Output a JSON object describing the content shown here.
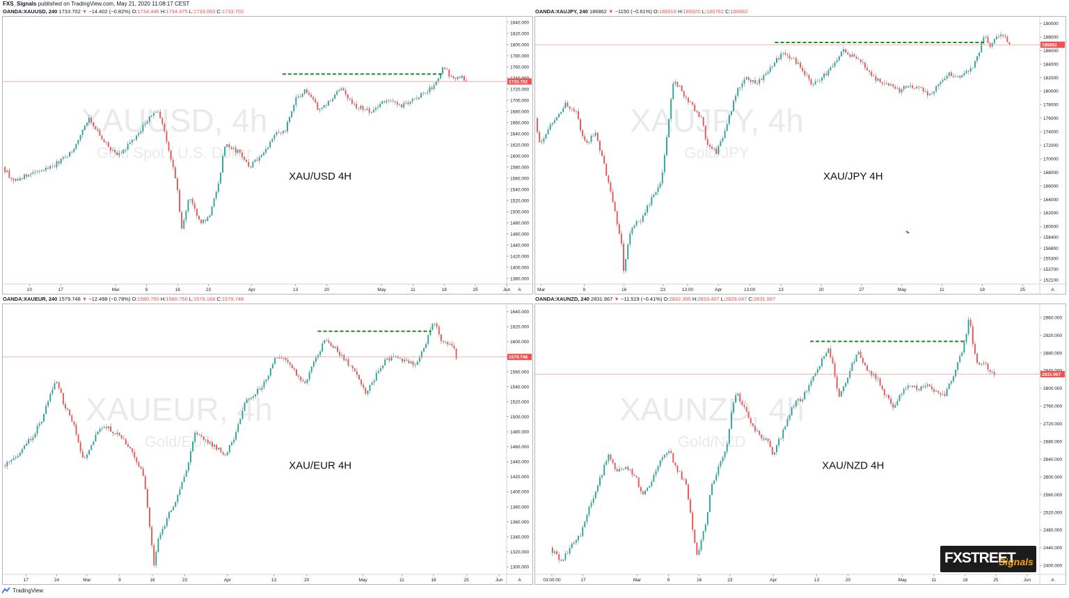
{
  "header": {
    "author": "FXS_Signals",
    "published": "published on TradingView.com, May 21, 2020 11:08:17 CEST"
  },
  "footer": {
    "brand": "TradingView"
  },
  "logo": {
    "main": "FXSTREET",
    "sub": "Signals"
  },
  "colors": {
    "up": "#26a69a",
    "down": "#ef5350",
    "wick": "#787b86",
    "resistance": "#1b8a1b",
    "price_line": "#ef9a9a",
    "tag": "#ef5350"
  },
  "chart_data": [
    {
      "type": "candlestick",
      "symbol": "OANDA:XAUUSD, 240",
      "last": "1733.702",
      "change": "−14.402 (−0.82%)",
      "ohlc": {
        "O": "1734.446",
        "H": "1734.475",
        "L": "1733.060",
        "C": "1733.702"
      },
      "label": "XAU/USD 4H",
      "watermark": "XAUUSD, 4h",
      "watermark_sub": "Gold Spot / U.S. Dollar",
      "price_tag": "1733.702",
      "ylim": [
        1370,
        1850
      ],
      "yticks": [
        1380,
        1400,
        1420,
        1440,
        1460,
        1480,
        1500,
        1520,
        1540,
        1560,
        1580,
        1600,
        1620,
        1640,
        1660,
        1680,
        1700,
        1720,
        1740,
        1760,
        1780,
        1800,
        1820,
        1840
      ],
      "ytick_labels": [
        "1380.000",
        "1400.000",
        "1420.000",
        "1440.000",
        "1460.000",
        "1480.000",
        "1500.000",
        "1520.000",
        "1540.000",
        "1560.000",
        "1580.000",
        "1600.000",
        "1620.000",
        "1640.000",
        "1660.000",
        "1680.000",
        "1700.000",
        "1720.000",
        "1740.000",
        "1760.000",
        "1780.000",
        "1800.000",
        "1820.000",
        "1840.000"
      ],
      "xticks": [
        {
          "label": "10",
          "x": 0.053
        },
        {
          "label": "17",
          "x": 0.115
        },
        {
          "label": "Mar",
          "x": 0.224
        },
        {
          "label": "9",
          "x": 0.285
        },
        {
          "label": "16",
          "x": 0.347
        },
        {
          "label": "23",
          "x": 0.408
        },
        {
          "label": "Apr",
          "x": 0.494
        },
        {
          "label": "13",
          "x": 0.581
        },
        {
          "label": "20",
          "x": 0.643
        },
        {
          "label": "May",
          "x": 0.752
        },
        {
          "label": "11",
          "x": 0.814
        },
        {
          "label": "18",
          "x": 0.876
        },
        {
          "label": "25",
          "x": 0.938
        },
        {
          "label": "Jun",
          "x": 1.0
        }
      ],
      "path": [
        [
          0,
          1580
        ],
        [
          0.02,
          1556
        ],
        [
          0.06,
          1568
        ],
        [
          0.1,
          1582
        ],
        [
          0.14,
          1610
        ],
        [
          0.17,
          1670
        ],
        [
          0.2,
          1625
        ],
        [
          0.23,
          1600
        ],
        [
          0.27,
          1640
        ],
        [
          0.29,
          1670
        ],
        [
          0.31,
          1680
        ],
        [
          0.33,
          1610
        ],
        [
          0.345,
          1550
        ],
        [
          0.355,
          1465
        ],
        [
          0.37,
          1530
        ],
        [
          0.39,
          1480
        ],
        [
          0.41,
          1490
        ],
        [
          0.43,
          1560
        ],
        [
          0.44,
          1620
        ],
        [
          0.47,
          1605
        ],
        [
          0.49,
          1580
        ],
        [
          0.52,
          1610
        ],
        [
          0.54,
          1640
        ],
        [
          0.56,
          1645
        ],
        [
          0.58,
          1700
        ],
        [
          0.6,
          1718
        ],
        [
          0.63,
          1680
        ],
        [
          0.65,
          1700
        ],
        [
          0.67,
          1720
        ],
        [
          0.7,
          1690
        ],
        [
          0.73,
          1680
        ],
        [
          0.76,
          1700
        ],
        [
          0.79,
          1690
        ],
        [
          0.82,
          1702
        ],
        [
          0.84,
          1715
        ],
        [
          0.86,
          1730
        ],
        [
          0.875,
          1760
        ],
        [
          0.89,
          1740
        ],
        [
          0.91,
          1745
        ],
        [
          0.92,
          1734
        ]
      ],
      "resistance": {
        "x0": 0.555,
        "x1": 0.875,
        "value": 1747
      },
      "last_value": 1733.7
    },
    {
      "type": "candlestick",
      "symbol": "OANDA:XAUJPY, 240",
      "last": "186862",
      "change": "−1150 (−0.61%)",
      "ohlc": {
        "O": "186916",
        "H": "186920",
        "L": "186762",
        "C": "186862"
      },
      "label": "XAU/JPY 4H",
      "watermark": "XAUJPY, 4h",
      "watermark_sub": "Gold/JPY",
      "price_tag": "186862",
      "ylim": [
        151500,
        191000
      ],
      "yticks": [
        152100,
        153700,
        155300,
        156800,
        158400,
        160000,
        162000,
        164000,
        166000,
        168000,
        170000,
        172000,
        174000,
        176000,
        178000,
        180000,
        182000,
        184000,
        186000,
        188000,
        190000
      ],
      "ytick_labels": [
        "152100",
        "153700",
        "155300",
        "156800",
        "158400",
        "160000",
        "162000",
        "164000",
        "166000",
        "168000",
        "170000",
        "172000",
        "174000",
        "176000",
        "178000",
        "180000",
        "182000",
        "184000",
        "186000",
        "188000",
        "190000"
      ],
      "xticks": [
        {
          "label": "Mar",
          "x": 0.012
        },
        {
          "label": "9",
          "x": 0.097
        },
        {
          "label": "16",
          "x": 0.176
        },
        {
          "label": "23",
          "x": 0.253
        },
        {
          "label": "13:00",
          "x": 0.302
        },
        {
          "label": "Apr",
          "x": 0.363
        },
        {
          "label": "13:00",
          "x": 0.425
        },
        {
          "label": "13",
          "x": 0.487
        },
        {
          "label": "20",
          "x": 0.567
        },
        {
          "label": "27",
          "x": 0.647
        },
        {
          "label": "May",
          "x": 0.727
        },
        {
          "label": "11",
          "x": 0.806
        },
        {
          "label": "18",
          "x": 0.886
        },
        {
          "label": "25",
          "x": 0.966
        }
      ],
      "path": [
        [
          0,
          176000
        ],
        [
          0.01,
          172000
        ],
        [
          0.03,
          175000
        ],
        [
          0.06,
          178000
        ],
        [
          0.08,
          177000
        ],
        [
          0.1,
          172000
        ],
        [
          0.12,
          174000
        ],
        [
          0.14,
          168000
        ],
        [
          0.15,
          165000
        ],
        [
          0.17,
          158000
        ],
        [
          0.175,
          153500
        ],
        [
          0.19,
          160000
        ],
        [
          0.21,
          161000
        ],
        [
          0.23,
          164000
        ],
        [
          0.25,
          167000
        ],
        [
          0.265,
          176000
        ],
        [
          0.275,
          182000
        ],
        [
          0.29,
          180000
        ],
        [
          0.31,
          178000
        ],
        [
          0.33,
          176000
        ],
        [
          0.34,
          172000
        ],
        [
          0.36,
          171000
        ],
        [
          0.38,
          175000
        ],
        [
          0.4,
          180000
        ],
        [
          0.42,
          182000
        ],
        [
          0.44,
          181000
        ],
        [
          0.47,
          184000
        ],
        [
          0.49,
          185500
        ],
        [
          0.51,
          185000
        ],
        [
          0.53,
          183000
        ],
        [
          0.55,
          181000
        ],
        [
          0.57,
          182000
        ],
        [
          0.59,
          184000
        ],
        [
          0.61,
          186000
        ],
        [
          0.63,
          185000
        ],
        [
          0.65,
          184000
        ],
        [
          0.67,
          182000
        ],
        [
          0.7,
          181000
        ],
        [
          0.72,
          180000
        ],
        [
          0.74,
          181000
        ],
        [
          0.76,
          180500
        ],
        [
          0.78,
          179500
        ],
        [
          0.8,
          181000
        ],
        [
          0.82,
          182500
        ],
        [
          0.84,
          182000
        ],
        [
          0.86,
          183000
        ],
        [
          0.87,
          184000
        ],
        [
          0.88,
          186000
        ],
        [
          0.89,
          188500
        ],
        [
          0.9,
          186500
        ],
        [
          0.91,
          188000
        ],
        [
          0.93,
          188000
        ],
        [
          0.94,
          187000
        ]
      ],
      "resistance": {
        "x0": 0.475,
        "x1": 0.89,
        "value": 187200
      },
      "last_value": 186862
    },
    {
      "type": "candlestick",
      "symbol": "OANDA:XAUEUR, 240",
      "last": "1579.748",
      "change": "−12.498 (−0.78%)",
      "ohlc": {
        "O": "1580.750",
        "H": "1580.750",
        "L": "1579.168",
        "C": "1579.748"
      },
      "label": "XAU/EUR 4H",
      "watermark": "XAUEUR, 4h",
      "watermark_sub": "Gold/EUR",
      "price_tag": "1579.748",
      "ylim": [
        1290,
        1650
      ],
      "yticks": [
        1300,
        1320,
        1340,
        1360,
        1380,
        1400,
        1420,
        1440,
        1460,
        1480,
        1500,
        1520,
        1540,
        1560,
        1580,
        1600,
        1620,
        1640
      ],
      "ytick_labels": [
        "1300.000",
        "1320.000",
        "1340.000",
        "1360.000",
        "1380.000",
        "1400.000",
        "1420.000",
        "1440.000",
        "1460.000",
        "1480.000",
        "1500.000",
        "1520.000",
        "1540.000",
        "1560.000",
        "1580.000",
        "1600.000",
        "1620.000",
        "1640.000"
      ],
      "xticks": [
        {
          "label": "17",
          "x": 0.046
        },
        {
          "label": "24",
          "x": 0.107
        },
        {
          "label": "Mar",
          "x": 0.167
        },
        {
          "label": "9",
          "x": 0.232
        },
        {
          "label": "16",
          "x": 0.297
        },
        {
          "label": "23",
          "x": 0.361
        },
        {
          "label": "Apr",
          "x": 0.446
        },
        {
          "label": "13",
          "x": 0.538
        },
        {
          "label": "20",
          "x": 0.603
        },
        {
          "label": "May",
          "x": 0.715
        },
        {
          "label": "11",
          "x": 0.792
        },
        {
          "label": "18",
          "x": 0.855
        },
        {
          "label": "25",
          "x": 0.92
        },
        {
          "label": "Jun",
          "x": 0.985
        }
      ],
      "path": [
        [
          0,
          1435
        ],
        [
          0.03,
          1450
        ],
        [
          0.06,
          1475
        ],
        [
          0.08,
          1500
        ],
        [
          0.105,
          1550
        ],
        [
          0.12,
          1520
        ],
        [
          0.14,
          1490
        ],
        [
          0.16,
          1440
        ],
        [
          0.18,
          1470
        ],
        [
          0.2,
          1490
        ],
        [
          0.22,
          1480
        ],
        [
          0.24,
          1470
        ],
        [
          0.26,
          1450
        ],
        [
          0.28,
          1420
        ],
        [
          0.29,
          1360
        ],
        [
          0.3,
          1305
        ],
        [
          0.31,
          1340
        ],
        [
          0.33,
          1370
        ],
        [
          0.35,
          1400
        ],
        [
          0.37,
          1440
        ],
        [
          0.38,
          1480
        ],
        [
          0.4,
          1470
        ],
        [
          0.42,
          1460
        ],
        [
          0.44,
          1450
        ],
        [
          0.46,
          1470
        ],
        [
          0.48,
          1520
        ],
        [
          0.5,
          1530
        ],
        [
          0.52,
          1545
        ],
        [
          0.54,
          1580
        ],
        [
          0.56,
          1575
        ],
        [
          0.58,
          1560
        ],
        [
          0.6,
          1545
        ],
        [
          0.62,
          1575
        ],
        [
          0.64,
          1605
        ],
        [
          0.66,
          1590
        ],
        [
          0.68,
          1575
        ],
        [
          0.7,
          1560
        ],
        [
          0.72,
          1530
        ],
        [
          0.74,
          1555
        ],
        [
          0.76,
          1575
        ],
        [
          0.78,
          1580
        ],
        [
          0.8,
          1575
        ],
        [
          0.82,
          1570
        ],
        [
          0.84,
          1600
        ],
        [
          0.855,
          1630
        ],
        [
          0.87,
          1600
        ],
        [
          0.89,
          1598
        ],
        [
          0.9,
          1580
        ]
      ],
      "resistance": {
        "x0": 0.625,
        "x1": 0.85,
        "value": 1614
      },
      "last_value": 1579.748
    },
    {
      "type": "candlestick",
      "symbol": "OANDA:XAUNZD, 240",
      "last": "2831.967",
      "change": "−11.519 (−0.41%)",
      "ohlc": {
        "O": "2832.395",
        "H": "2833.407",
        "L": "2829.047",
        "C": "2831.967"
      },
      "label": "XAU/NZD 4H",
      "watermark": "XAUNZD, 4h",
      "watermark_sub": "Gold/NZD",
      "price_tag": "2831.967",
      "ylim": [
        2380,
        2990
      ],
      "yticks": [
        2400,
        2440,
        2480,
        2520,
        2560,
        2600,
        2640,
        2680,
        2720,
        2760,
        2800,
        2840,
        2880,
        2920,
        2960
      ],
      "ytick_labels": [
        "2400.000",
        "2440.000",
        "2480.000",
        "2520.000",
        "2560.000",
        "2600.000",
        "2640.000",
        "2680.000",
        "2720.000",
        "2760.000",
        "2800.000",
        "2840.000",
        "2880.000",
        "2920.000",
        "2960.000"
      ],
      "xticks": [
        {
          "label": "03:00:00",
          "x": 0.033
        },
        {
          "label": "17",
          "x": 0.095
        },
        {
          "label": "Mar",
          "x": 0.202
        },
        {
          "label": "9",
          "x": 0.264
        },
        {
          "label": "16",
          "x": 0.325
        },
        {
          "label": "23",
          "x": 0.386
        },
        {
          "label": "Apr",
          "x": 0.472
        },
        {
          "label": "13",
          "x": 0.558
        },
        {
          "label": "20",
          "x": 0.62
        },
        {
          "label": "May",
          "x": 0.728
        },
        {
          "label": "11",
          "x": 0.79
        },
        {
          "label": "18",
          "x": 0.852
        },
        {
          "label": "25",
          "x": 0.913
        },
        {
          "label": "Jun",
          "x": 0.975
        }
      ],
      "path": [
        [
          0.03,
          2440
        ],
        [
          0.05,
          2410
        ],
        [
          0.07,
          2440
        ],
        [
          0.09,
          2470
        ],
        [
          0.11,
          2540
        ],
        [
          0.13,
          2600
        ],
        [
          0.145,
          2650
        ],
        [
          0.16,
          2610
        ],
        [
          0.18,
          2620
        ],
        [
          0.2,
          2600
        ],
        [
          0.21,
          2560
        ],
        [
          0.23,
          2590
        ],
        [
          0.25,
          2640
        ],
        [
          0.265,
          2660
        ],
        [
          0.28,
          2620
        ],
        [
          0.3,
          2580
        ],
        [
          0.31,
          2500
        ],
        [
          0.32,
          2420
        ],
        [
          0.335,
          2480
        ],
        [
          0.35,
          2580
        ],
        [
          0.37,
          2640
        ],
        [
          0.38,
          2670
        ],
        [
          0.39,
          2750
        ],
        [
          0.4,
          2790
        ],
        [
          0.42,
          2740
        ],
        [
          0.44,
          2700
        ],
        [
          0.46,
          2680
        ],
        [
          0.47,
          2650
        ],
        [
          0.49,
          2700
        ],
        [
          0.51,
          2760
        ],
        [
          0.53,
          2780
        ],
        [
          0.55,
          2820
        ],
        [
          0.57,
          2870
        ],
        [
          0.58,
          2890
        ],
        [
          0.59,
          2860
        ],
        [
          0.6,
          2780
        ],
        [
          0.61,
          2800
        ],
        [
          0.63,
          2860
        ],
        [
          0.64,
          2880
        ],
        [
          0.66,
          2840
        ],
        [
          0.68,
          2820
        ],
        [
          0.69,
          2790
        ],
        [
          0.71,
          2760
        ],
        [
          0.72,
          2780
        ],
        [
          0.74,
          2810
        ],
        [
          0.76,
          2800
        ],
        [
          0.78,
          2805
        ],
        [
          0.8,
          2790
        ],
        [
          0.81,
          2780
        ],
        [
          0.83,
          2830
        ],
        [
          0.85,
          2900
        ],
        [
          0.86,
          2960
        ],
        [
          0.87,
          2880
        ],
        [
          0.88,
          2850
        ],
        [
          0.89,
          2860
        ],
        [
          0.9,
          2840
        ],
        [
          0.91,
          2832
        ]
      ],
      "resistance": {
        "x0": 0.545,
        "x1": 0.85,
        "value": 2906
      },
      "last_value": 2831.967
    }
  ]
}
